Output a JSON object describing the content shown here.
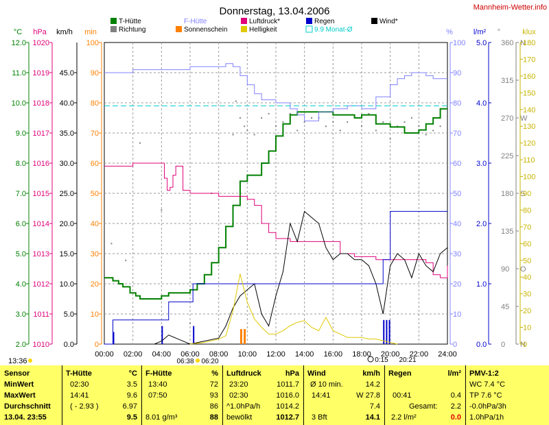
{
  "title": "Donnerstag, 13.04.2006",
  "site": "Mannheim-Wetter.info",
  "axis_units": {
    "temp": "°C",
    "hpa": "hPa",
    "kmh": "km/h",
    "min": "min",
    "pct": "%",
    "rain": "l/m²",
    "dir": "°",
    "klux": "klux"
  },
  "legend": [
    {
      "label": "T-Hütte",
      "color": "#008000",
      "type": "square"
    },
    {
      "label": "Richtung",
      "color": "#808080",
      "type": "square"
    },
    {
      "label": "F-Hütte",
      "color": "#8080ff",
      "type": "text-color"
    },
    {
      "label": "Sonnenschein",
      "color": "#ff8000",
      "type": "square"
    },
    {
      "label": "Luftdruck*",
      "color": "#e0007a",
      "type": "square"
    },
    {
      "label": "Helligkeit",
      "color": "#e0c800",
      "type": "square"
    },
    {
      "label": "Regen",
      "color": "#0000cc",
      "type": "square"
    },
    {
      "label": "9.9 Monat-Ø",
      "color": "#00cccc",
      "type": "outline"
    },
    {
      "label": "Wind*",
      "color": "#000000",
      "type": "square"
    }
  ],
  "footer_left": "13:36",
  "sun_times": {
    "rise": "06:38",
    "set": "06:20"
  },
  "moon_times": {
    "rise": "0:15",
    "set": "20:21"
  },
  "chart_data": {
    "type": "line",
    "x_unit": "hour",
    "xlim": [
      0,
      24
    ],
    "x_ticks": [
      "00:00",
      "02:00",
      "04:00",
      "06:00",
      "08:00",
      "10:00",
      "12:00",
      "14:00",
      "16:00",
      "18:00",
      "20:00",
      "22:00",
      "24:00"
    ],
    "axes": {
      "temp_c": {
        "range": [
          2,
          12
        ],
        "ticks": [
          "2.0",
          "3.0",
          "4.0",
          "5.0",
          "6.0",
          "7.0",
          "8.0",
          "9.0",
          "10.0",
          "11.0",
          "12.0"
        ]
      },
      "pressure_hpa": {
        "range": [
          1010,
          1020
        ],
        "ticks": [
          "1010",
          "1011",
          "1012",
          "1013",
          "1014",
          "1015",
          "1016",
          "1017",
          "1018",
          "1019",
          "1020"
        ]
      },
      "wind_kmh": {
        "range": [
          0,
          50
        ],
        "ticks": [
          "0.0",
          "5.0",
          "10.0",
          "15.0",
          "20.0",
          "25.0",
          "30.0",
          "35.0",
          "40.0",
          "45.0"
        ]
      },
      "sun_min": {
        "range": [
          0,
          100
        ],
        "ticks": [
          "0",
          "10",
          "20",
          "30",
          "40",
          "50",
          "60",
          "70",
          "80",
          "90",
          "100"
        ]
      },
      "humidity_pct": {
        "range": [
          0,
          100
        ],
        "ticks": [
          "0",
          "10",
          "20",
          "30",
          "40",
          "50",
          "60",
          "70",
          "80",
          "90",
          "100"
        ]
      },
      "rain_lm2": {
        "range": [
          0,
          5
        ],
        "ticks": [
          "0.0",
          "1.0",
          "2.0",
          "3.0",
          "4.0",
          "5.0"
        ]
      },
      "direction_deg": {
        "range": [
          0,
          360
        ],
        "ticks": [
          "0",
          "45",
          "90",
          "135",
          "180",
          "225",
          "270",
          "315",
          "360"
        ],
        "labels": [
          "N",
          "",
          "O",
          "",
          "S",
          "",
          "W",
          "",
          "N"
        ]
      },
      "brightness_klux": {
        "range": [
          0,
          180
        ],
        "ticks": [
          "0",
          "10",
          "20",
          "30",
          "40",
          "50",
          "60",
          "70",
          "80",
          "90",
          "100",
          "110",
          "120",
          "130",
          "140",
          "150",
          "160",
          "170",
          "180"
        ]
      }
    },
    "series": [
      {
        "name": "T-Hütte",
        "axis": "temp_c",
        "color": "#008000",
        "step": true,
        "x": [
          0,
          0.6,
          1.0,
          1.3,
          1.8,
          2.2,
          2.5,
          3.0,
          3.5,
          4.0,
          4.5,
          5.0,
          5.5,
          6.0,
          6.5,
          7.0,
          7.5,
          8.0,
          8.5,
          9.0,
          9.5,
          10.0,
          10.5,
          11.0,
          11.5,
          12.0,
          12.5,
          13.0,
          13.5,
          14.0,
          14.5,
          15.0,
          15.5,
          16.0,
          16.5,
          17.0,
          17.5,
          18.0,
          18.5,
          19.0,
          19.5,
          20.0,
          20.5,
          21.0,
          21.5,
          22.0,
          22.5,
          23.0,
          23.5,
          24.0
        ],
        "y": [
          4.2,
          4.1,
          4.0,
          3.9,
          3.7,
          3.6,
          3.5,
          3.5,
          3.5,
          3.6,
          3.7,
          3.7,
          3.7,
          3.8,
          4.0,
          4.3,
          4.7,
          5.2,
          5.9,
          6.6,
          7.4,
          7.6,
          7.6,
          8.0,
          8.4,
          8.9,
          9.3,
          9.6,
          9.7,
          9.7,
          9.7,
          9.7,
          9.7,
          9.6,
          9.6,
          9.6,
          9.5,
          9.6,
          9.6,
          9.3,
          9.3,
          9.2,
          9.2,
          9.0,
          9.0,
          9.1,
          9.3,
          9.5,
          9.8,
          9.8
        ]
      },
      {
        "name": "F-Hütte",
        "axis": "humidity_pct",
        "color": "#8080ff",
        "step": true,
        "x": [
          0,
          1,
          2,
          3,
          3.5,
          4,
          5,
          6,
          7,
          8,
          8.5,
          9,
          9.5,
          10,
          10.5,
          11,
          11.5,
          12,
          12.5,
          13,
          13.5,
          14,
          15,
          16,
          17,
          18,
          19,
          20,
          20.5,
          21,
          21.5,
          22,
          22.5,
          23,
          24
        ],
        "y": [
          90,
          90,
          91,
          91,
          91,
          91,
          91,
          92,
          92,
          92,
          93,
          92,
          89,
          86,
          83,
          81,
          81,
          80,
          80,
          78,
          76,
          74,
          77,
          78,
          79,
          78,
          82,
          86,
          88,
          89,
          90,
          90,
          89,
          88,
          88
        ]
      },
      {
        "name": "Luftdruck*",
        "axis": "pressure_hpa",
        "color": "#e0007a",
        "step": true,
        "x": [
          0,
          1,
          2,
          3,
          4,
          4.2,
          4.4,
          4.6,
          4.8,
          5.0,
          5.2,
          5.5,
          6,
          7,
          8,
          9,
          10,
          10.5,
          11,
          11.5,
          12,
          13,
          14,
          15,
          16,
          16.5,
          17,
          17.5,
          18,
          19,
          20,
          21,
          22,
          22.5,
          23,
          23.5,
          24
        ],
        "y": [
          1015.9,
          1015.9,
          1016.0,
          1016.0,
          1016.0,
          1015.5,
          1015.1,
          1015.2,
          1015.6,
          1015.9,
          1015.9,
          1015.1,
          1015.0,
          1015.0,
          1014.9,
          1014.9,
          1014.8,
          1014.6,
          1014.0,
          1013.7,
          1013.5,
          1013.4,
          1013.4,
          1013.4,
          1013.4,
          1013.0,
          1013.0,
          1012.9,
          1012.9,
          1012.8,
          1012.8,
          1012.8,
          1012.8,
          1012.7,
          1012.3,
          1012.2,
          1012.6
        ]
      },
      {
        "name": "Wind*",
        "axis": "wind_kmh",
        "color": "#000000",
        "step": false,
        "x": [
          3.5,
          4.0,
          4.5,
          5.0,
          5.5,
          6.0,
          7.0,
          8.0,
          8.5,
          9.0,
          9.5,
          10.0,
          10.5,
          11.0,
          11.5,
          12.0,
          12.5,
          13.0,
          13.5,
          14.0,
          14.5,
          15.0,
          15.5,
          16.0,
          16.5,
          17.0,
          17.5,
          18.0,
          18.5,
          19.0,
          19.5,
          20.0,
          20.5,
          21.0,
          21.5,
          22.0,
          22.5,
          23.0,
          23.5,
          24.0
        ],
        "y": [
          0,
          0.5,
          1.5,
          1,
          0.5,
          0,
          0.5,
          1,
          3,
          6,
          8,
          9,
          10,
          5,
          3,
          8,
          12,
          20,
          17,
          22,
          21,
          20,
          16,
          14,
          15,
          15,
          14,
          14,
          13,
          10,
          5,
          13,
          15,
          14,
          11,
          15,
          13,
          12,
          15,
          16
        ]
      },
      {
        "name": "Regen",
        "axis": "rain_lm2",
        "color": "#0000cc",
        "step": true,
        "x": [
          0,
          0.6,
          4.0,
          4.5,
          5.0,
          6.0,
          6.2,
          7.0,
          8.0,
          9.0,
          10.0,
          11.0,
          12.0,
          13.0,
          14.0,
          15.0,
          16.0,
          17.0,
          18.0,
          19.0,
          19.5,
          20.0,
          21.0,
          22.0,
          23.0,
          24.0
        ],
        "y": [
          0,
          0.4,
          0.4,
          0.7,
          0.7,
          0.7,
          1.0,
          1.0,
          1.0,
          1.0,
          1.0,
          1.0,
          1.0,
          1.0,
          1.0,
          1.0,
          1.0,
          1.0,
          1.0,
          1.0,
          1.4,
          2.2,
          2.2,
          2.2,
          2.2,
          2.2
        ]
      },
      {
        "name": "Helligkeit",
        "axis": "brightness_klux",
        "color": "#e0c800",
        "step": false,
        "x": [
          6,
          7,
          8,
          8.5,
          9,
          9.5,
          10,
          10.5,
          11,
          11.5,
          12,
          12.5,
          13,
          13.5,
          14,
          14.5,
          15,
          15.5,
          16,
          16.5,
          17,
          17.5,
          18,
          18.5,
          19,
          19.5,
          20,
          20.5
        ],
        "y": [
          0,
          1,
          3,
          5,
          20,
          42,
          25,
          15,
          10,
          6,
          6,
          8,
          11,
          13,
          14,
          10,
          8,
          16,
          8,
          6,
          4,
          4,
          4,
          3,
          3,
          2,
          1,
          0
        ]
      },
      {
        "name": "9.9 Monat-Ø",
        "axis": "temp_c",
        "color": "#00cccc",
        "step": false,
        "dashed": true,
        "x": [
          0,
          24
        ],
        "y": [
          9.9,
          9.9
        ]
      }
    ],
    "bars": [
      {
        "name": "Sonnenschein",
        "axis": "sun_min",
        "color": "#ff8000",
        "x": [
          9.5,
          9.75
        ],
        "values": [
          5,
          5
        ]
      },
      {
        "name": "Regen-Intensität",
        "axis": "rain_lm2",
        "color": "#0000cc",
        "x": [
          0.6,
          4.0,
          6.2,
          19.5,
          19.7,
          19.9
        ],
        "values": [
          0.2,
          0.3,
          0.3,
          0.4,
          0.4,
          0.4
        ]
      }
    ],
    "scatter": [
      {
        "name": "Richtung",
        "axis": "direction_deg",
        "color": "#808080",
        "x": [
          0.5,
          1.5,
          2.5,
          4,
          6,
          7.5,
          8.5,
          9,
          9.2,
          9.5,
          9.8,
          10,
          10.5,
          11,
          11.5,
          12,
          12.5,
          13,
          13.5,
          14,
          14.5,
          15,
          15.5,
          16,
          16.5,
          17,
          17.5,
          18,
          18.5,
          19,
          19.5,
          20,
          20.5,
          21,
          21.5,
          22,
          22.5,
          23,
          23.5
        ],
        "y": [
          120,
          100,
          240,
          160,
          25,
          180,
          130,
          250,
          290,
          270,
          260,
          255,
          250,
          270,
          275,
          260,
          265,
          275,
          255,
          265,
          270,
          270,
          260,
          265,
          255,
          265,
          270,
          260,
          275,
          255,
          265,
          245,
          260,
          265,
          270,
          260,
          250,
          255,
          260
        ]
      }
    ]
  },
  "stats": {
    "headers": {
      "sensor": "Sensor",
      "t": "T-Hütte",
      "t_unit": "°C",
      "f": "F-Hütte",
      "f_unit": "%",
      "l": "Luftdruck",
      "l_unit": "hPa",
      "w": "Wind",
      "w_unit": "km/h",
      "r": "Regen",
      "r_unit": "l/m²",
      "p": "PMV-1:2"
    },
    "rows": [
      {
        "label": "MinWert",
        "t_time": "02:30",
        "t_val": "3.5",
        "f_time": "13:40",
        "f_val": "72",
        "l_time": "23:20",
        "l_val": "1011.7",
        "w_time": "Ø 10 min.",
        "w_val": "14.2",
        "r_time": "",
        "r_val": "",
        "p": "WC 7.4 °C"
      },
      {
        "label": "MaxWert",
        "t_time": "14:41",
        "t_val": "9.6",
        "f_time": "07:50",
        "f_val": "93",
        "l_time": "02:30",
        "l_val": "1016.0",
        "w_time": "14:41",
        "w_val": "W 27.8",
        "r_time": "00:41",
        "r_val": "0.4",
        "p": "TP 7.6 °C"
      },
      {
        "label": "Durchschnitt",
        "t_time": "( - 2.93 )",
        "t_val": "6.97",
        "f_time": "",
        "f_val": "86",
        "l_time": "^1.0hPa/h",
        "l_val": "1014.2",
        "w_time": "",
        "w_val": "7.4",
        "r_time": "Gesamt:",
        "r_val": "2.2",
        "p": "-0.0hPa/3h"
      },
      {
        "label": "13.04.  23:55",
        "t_time": "",
        "t_val": "9.5",
        "f_time": "8.01 g/m³",
        "f_val": "88",
        "l_time": "bewölkt",
        "l_val": "1012.7",
        "w_time": "3 Bft",
        "w_val": "14.1",
        "r_time": "2.2 l/m²",
        "r_val": "0.0",
        "p": "1.0hPa/1h"
      }
    ]
  }
}
